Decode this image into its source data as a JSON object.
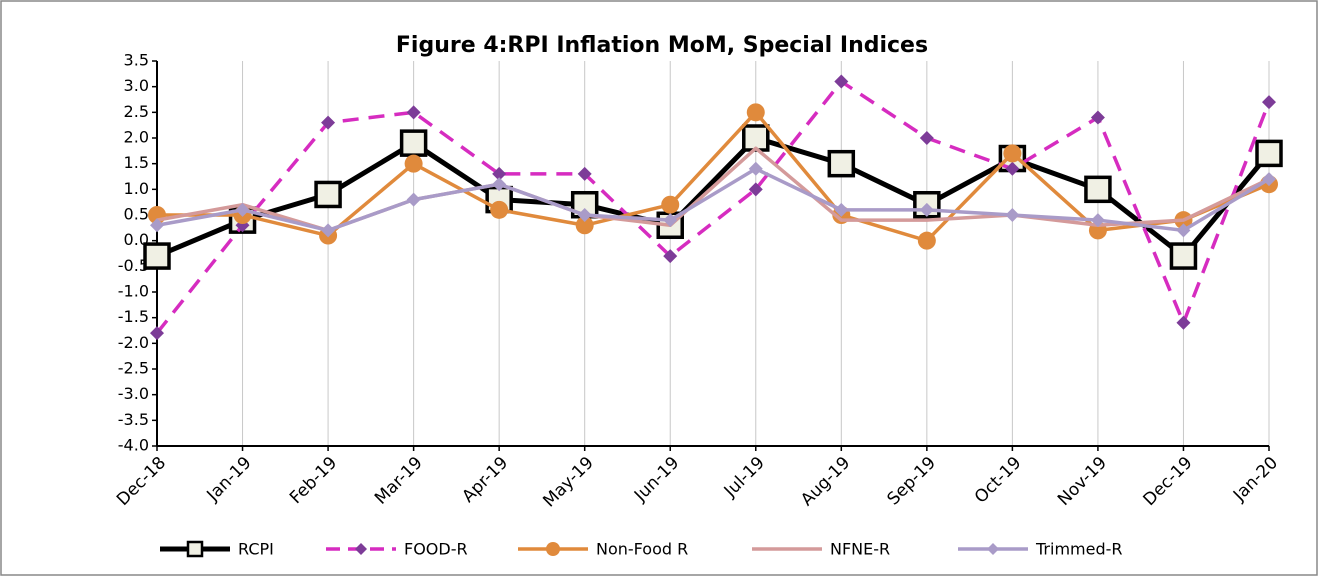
{
  "chart_data": {
    "type": "line",
    "title": "Figure 4:RPI Inflation MoM, Special Indices",
    "categories": [
      "Dec-18",
      "Jan-19",
      "Feb-19",
      "Mar-19",
      "Apr-19",
      "May-19",
      "Jun-19",
      "Jul-19",
      "Aug-19",
      "Sep-19",
      "Oct-19",
      "Nov-19",
      "Dec-19",
      "Jan-20"
    ],
    "ylim": [
      -4.0,
      3.5
    ],
    "yticks": [
      3.5,
      {
        "value": 3.0,
        "label": "3.0"
      },
      2.5,
      {
        "value": 2.0,
        "label": "2.0"
      },
      1.5,
      {
        "value": 1.0,
        "label": "1.0"
      },
      0.5,
      {
        "value": 0.0,
        "label": "0.0"
      },
      -0.5,
      {
        "value": -1.0,
        "label": "-1.0"
      },
      -1.5,
      {
        "value": -2.0,
        "label": "-2.0"
      },
      -2.5,
      {
        "value": -3.0,
        "label": "-3.0"
      },
      -3.5,
      {
        "value": -4.0,
        "label": "-4.0"
      }
    ],
    "grid": "x",
    "legend": "bottom",
    "series": [
      {
        "name": "RCPI",
        "color": "#000000",
        "marker": "square",
        "marker_color": "#f0f0e4",
        "dashed": false,
        "values": [
          -0.3,
          0.4,
          0.9,
          1.9,
          0.8,
          0.7,
          0.3,
          2.0,
          1.5,
          0.7,
          1.6,
          1.0,
          -0.3,
          1.7
        ]
      },
      {
        "name": "FOOD-R",
        "color": "#d62cc0",
        "marker": "diamond",
        "marker_color": "#7d3c98",
        "dashed": true,
        "values": [
          -1.8,
          0.3,
          2.3,
          2.5,
          1.3,
          1.3,
          -0.3,
          1.0,
          3.1,
          2.0,
          1.4,
          2.4,
          -1.6,
          2.7
        ]
      },
      {
        "name": "Non-Food R",
        "color": "#e08a3c",
        "marker": "circle",
        "marker_color": "#e08a3c",
        "dashed": false,
        "values": [
          0.5,
          0.5,
          0.1,
          1.5,
          0.6,
          0.3,
          0.7,
          2.5,
          0.5,
          0.0,
          1.7,
          0.2,
          0.4,
          1.1
        ]
      },
      {
        "name": "NFNE-R",
        "color": "#d49a9a",
        "marker": "none",
        "marker_color": "#d49a9a",
        "dashed": false,
        "values": [
          0.4,
          0.7,
          0.2,
          0.8,
          1.1,
          0.5,
          0.3,
          1.8,
          0.4,
          0.4,
          0.5,
          0.3,
          0.4,
          1.2
        ]
      },
      {
        "name": "Trimmed-R",
        "color": "#a99bc8",
        "marker": "diamond",
        "marker_color": "#a99bc8",
        "dashed": false,
        "values": [
          0.3,
          0.6,
          0.2,
          0.8,
          1.1,
          0.5,
          0.4,
          1.4,
          0.6,
          0.6,
          0.5,
          0.4,
          0.2,
          1.2
        ]
      }
    ]
  }
}
